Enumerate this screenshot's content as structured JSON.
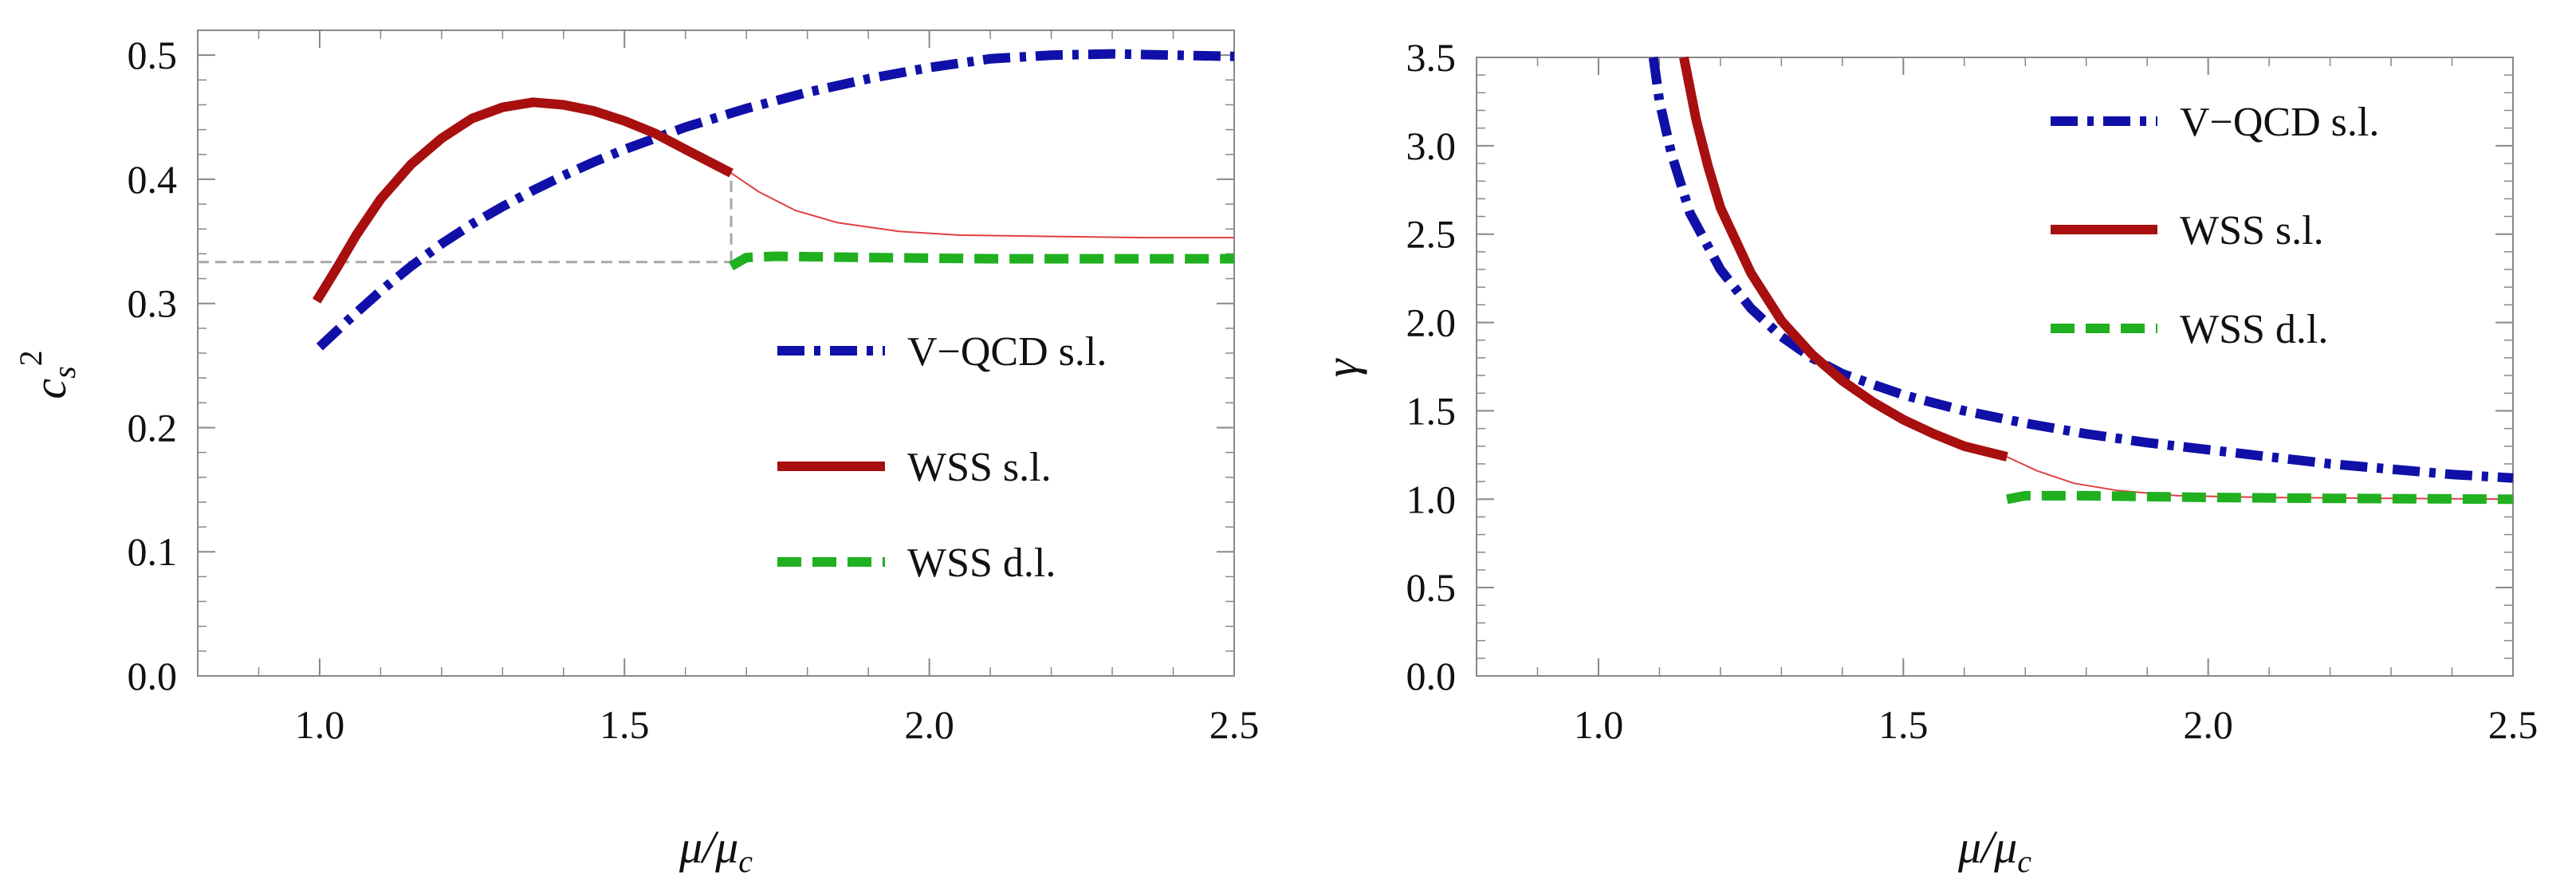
{
  "chart_data": [
    {
      "type": "line",
      "ylabel_main": "c",
      "ylabel_sub": "s",
      "ylabel_sup": "2",
      "xlabel_main": "μ/μ",
      "xlabel_sub": "c",
      "xlim": [
        0.8,
        2.5
      ],
      "ylim": [
        0.0,
        0.52
      ],
      "xticks": [
        "1.0",
        "1.5",
        "2.0",
        "2.5"
      ],
      "yticks": [
        "0.0",
        "0.1",
        "0.2",
        "0.3",
        "0.4",
        "0.5"
      ],
      "legend_position": "lower-right",
      "reference_lines": [
        {
          "name": "conformal-value",
          "points": [
            [
              0.8,
              0.3333
            ],
            [
              1.675,
              0.3333
            ]
          ],
          "color": "#a8a8a8"
        },
        {
          "name": "transition-marker",
          "points": [
            [
              1.675,
              0.3333
            ],
            [
              1.675,
              0.405
            ]
          ],
          "color": "#a8a8a8"
        }
      ],
      "series": [
        {
          "name": "V−QCD s.l.",
          "style": "dashdot",
          "color": "#1010a8",
          "points": [
            [
              1.0,
              0.265
            ],
            [
              1.05,
              0.288
            ],
            [
              1.1,
              0.31
            ],
            [
              1.15,
              0.33
            ],
            [
              1.2,
              0.348
            ],
            [
              1.25,
              0.364
            ],
            [
              1.3,
              0.378
            ],
            [
              1.35,
              0.391
            ],
            [
              1.4,
              0.403
            ],
            [
              1.45,
              0.414
            ],
            [
              1.5,
              0.424
            ],
            [
              1.6,
              0.442
            ],
            [
              1.7,
              0.457
            ],
            [
              1.8,
              0.47
            ],
            [
              1.9,
              0.481
            ],
            [
              2.0,
              0.49
            ],
            [
              2.1,
              0.497
            ],
            [
              2.2,
              0.5
            ],
            [
              2.3,
              0.501
            ],
            [
              2.4,
              0.5
            ],
            [
              2.5,
              0.499
            ]
          ]
        },
        {
          "name": "WSS s.l.",
          "style": "solid",
          "color": "#a80f0f",
          "points": [
            [
              0.995,
              0.302
            ],
            [
              1.03,
              0.33
            ],
            [
              1.06,
              0.355
            ],
            [
              1.1,
              0.384
            ],
            [
              1.15,
              0.412
            ],
            [
              1.2,
              0.433
            ],
            [
              1.25,
              0.449
            ],
            [
              1.3,
              0.458
            ],
            [
              1.35,
              0.462
            ],
            [
              1.4,
              0.46
            ],
            [
              1.45,
              0.455
            ],
            [
              1.5,
              0.447
            ],
            [
              1.55,
              0.437
            ],
            [
              1.6,
              0.424
            ],
            [
              1.675,
              0.405
            ]
          ]
        },
        {
          "name": "WSS s.l. continuation",
          "style": "thin",
          "color": "#e04040",
          "points": [
            [
              1.675,
              0.405
            ],
            [
              1.72,
              0.39
            ],
            [
              1.78,
              0.375
            ],
            [
              1.85,
              0.365
            ],
            [
              1.95,
              0.358
            ],
            [
              2.05,
              0.355
            ],
            [
              2.2,
              0.354
            ],
            [
              2.35,
              0.353
            ],
            [
              2.5,
              0.353
            ]
          ]
        },
        {
          "name": "WSS d.l.",
          "style": "dashed",
          "color": "#20b020",
          "points": [
            [
              1.675,
              0.33
            ],
            [
              1.7,
              0.337
            ],
            [
              1.75,
              0.338
            ],
            [
              1.9,
              0.337
            ],
            [
              2.1,
              0.336
            ],
            [
              2.3,
              0.336
            ],
            [
              2.5,
              0.336
            ]
          ]
        }
      ],
      "legend": [
        "V−QCD s.l.",
        "WSS s.l.",
        "WSS d.l."
      ]
    },
    {
      "type": "line",
      "ylabel_main": "γ",
      "xlabel_main": "μ/μ",
      "xlabel_sub": "c",
      "xlim": [
        0.8,
        2.5
      ],
      "ylim": [
        0.0,
        3.5
      ],
      "xticks": [
        "1.0",
        "1.5",
        "2.0",
        "2.5"
      ],
      "yticks": [
        "0.0",
        "0.5",
        "1.0",
        "1.5",
        "2.0",
        "2.5",
        "3.0",
        "3.5"
      ],
      "legend_position": "top-right",
      "reference_lines": [],
      "series": [
        {
          "name": "V−QCD s.l.",
          "style": "dashdot",
          "color": "#1010a8",
          "points": [
            [
              1.09,
              3.5
            ],
            [
              1.1,
              3.25
            ],
            [
              1.12,
              2.95
            ],
            [
              1.15,
              2.62
            ],
            [
              1.2,
              2.3
            ],
            [
              1.25,
              2.08
            ],
            [
              1.3,
              1.92
            ],
            [
              1.35,
              1.8
            ],
            [
              1.4,
              1.71
            ],
            [
              1.5,
              1.59
            ],
            [
              1.6,
              1.5
            ],
            [
              1.7,
              1.43
            ],
            [
              1.8,
              1.37
            ],
            [
              1.9,
              1.32
            ],
            [
              2.0,
              1.28
            ],
            [
              2.1,
              1.24
            ],
            [
              2.2,
              1.2
            ],
            [
              2.3,
              1.17
            ],
            [
              2.4,
              1.14
            ],
            [
              2.5,
              1.12
            ]
          ]
        },
        {
          "name": "WSS s.l.",
          "style": "solid",
          "color": "#a80f0f",
          "points": [
            [
              1.14,
              3.5
            ],
            [
              1.16,
              3.15
            ],
            [
              1.18,
              2.88
            ],
            [
              1.2,
              2.65
            ],
            [
              1.25,
              2.28
            ],
            [
              1.3,
              2.01
            ],
            [
              1.35,
              1.82
            ],
            [
              1.4,
              1.67
            ],
            [
              1.45,
              1.55
            ],
            [
              1.5,
              1.45
            ],
            [
              1.55,
              1.37
            ],
            [
              1.6,
              1.3
            ],
            [
              1.67,
              1.24
            ]
          ]
        },
        {
          "name": "WSS s.l. continuation",
          "style": "thin",
          "color": "#e04040",
          "points": [
            [
              1.67,
              1.24
            ],
            [
              1.72,
              1.16
            ],
            [
              1.78,
              1.09
            ],
            [
              1.85,
              1.05
            ],
            [
              1.95,
              1.02
            ],
            [
              2.1,
              1.01
            ],
            [
              2.3,
              1.005
            ],
            [
              2.5,
              1.0
            ]
          ]
        },
        {
          "name": "WSS d.l.",
          "style": "dashed",
          "color": "#20b020",
          "points": [
            [
              1.67,
              1.0
            ],
            [
              1.7,
              1.02
            ],
            [
              1.8,
              1.02
            ],
            [
              1.9,
              1.015
            ],
            [
              2.0,
              1.01
            ],
            [
              2.2,
              1.005
            ],
            [
              2.5,
              1.0
            ]
          ]
        }
      ],
      "legend": [
        "V−QCD s.l.",
        "WSS s.l.",
        "WSS d.l."
      ]
    }
  ]
}
